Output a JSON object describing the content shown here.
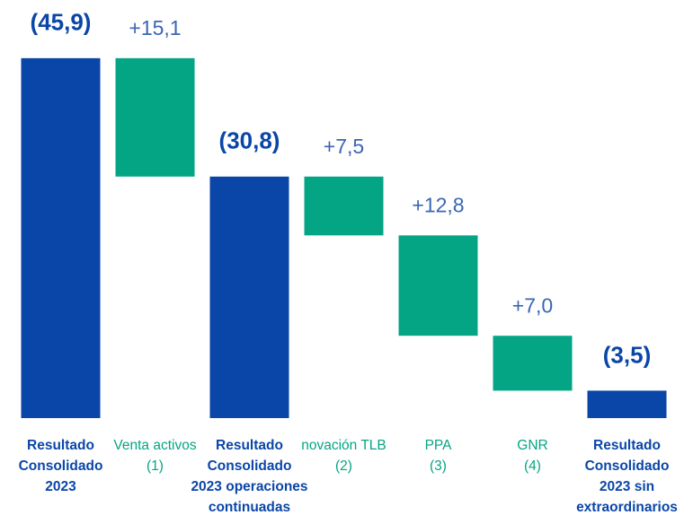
{
  "chart_data": {
    "type": "waterfall",
    "categories": [
      "Resultado\nConsolidado\n2023",
      "Venta activos\n(1)",
      "Resultado\nConsolidado\n2023 operaciones\ncontinuadas",
      "novación TLB\n(2)",
      "PPA\n(3)",
      "GNR\n(4)",
      "Resultado\nConsolidado\n2023 sin\nextraordinarios"
    ],
    "values": [
      -45.9,
      15.1,
      -30.8,
      7.5,
      12.8,
      7.0,
      -3.5
    ],
    "value_labels": [
      "(45,9)",
      "+15,1",
      "(30,8)",
      "+7,5",
      "+12,8",
      "+7,0",
      "(3,5)"
    ],
    "measure": [
      "total",
      "relative",
      "total",
      "relative",
      "relative",
      "relative",
      "total"
    ],
    "total_color": "#0a46a8",
    "increase_color": "#04a584",
    "ylim": [
      0,
      -50
    ]
  }
}
